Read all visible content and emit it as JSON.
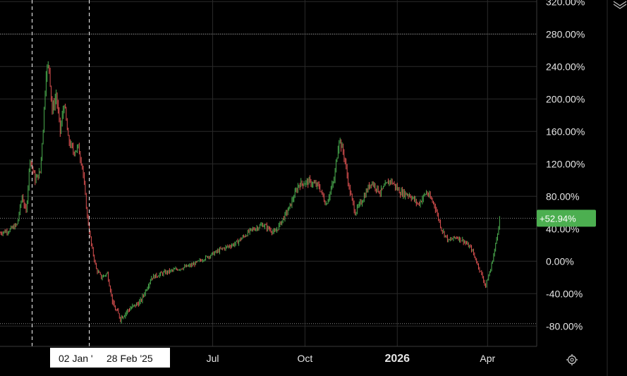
{
  "chart_data": {
    "type": "candlestick",
    "y_axis": {
      "unit": "%",
      "ticks": [
        "-80.00%",
        "-40.00%",
        "0.00%",
        "40.00%",
        "80.00%",
        "120.00%",
        "160.00%",
        "200.00%",
        "240.00%",
        "280.00%",
        "320.00%"
      ],
      "tick_values": [
        -80,
        -40,
        0,
        40,
        80,
        120,
        160,
        200,
        240,
        280,
        320
      ],
      "range": [
        -105,
        322
      ]
    },
    "x_axis": {
      "labels": [
        {
          "text": "Jul",
          "date": "2025-07-01",
          "bold": false
        },
        {
          "text": "Oct",
          "date": "2025-10-01",
          "bold": false
        },
        {
          "text": "2026",
          "date": "2026-01-01",
          "bold": true
        },
        {
          "text": "Apr",
          "date": "2026-04-01",
          "bold": false
        }
      ],
      "range": [
        "2024-12-01",
        "2026-05-20"
      ]
    },
    "crosshair_dates": [
      {
        "text": "02 Jan '",
        "date": "2025-01-02"
      },
      {
        "text": "28 Feb '25",
        "date": "2025-02-28"
      }
    ],
    "last_value": {
      "text": "+52.94%",
      "value": 52.94
    },
    "reference_levels": [
      280,
      -77
    ],
    "colors": {
      "up": "#4caf50",
      "down": "#e05252",
      "last_value_bg": "#4caf50",
      "grid": "#2a2a2a"
    },
    "grid": true,
    "series_anchors": [
      {
        "date": "2024-12-01",
        "value": 35
      },
      {
        "date": "2024-12-10",
        "value": 38
      },
      {
        "date": "2024-12-18",
        "value": 45
      },
      {
        "date": "2024-12-23",
        "value": 80
      },
      {
        "date": "2024-12-27",
        "value": 60
      },
      {
        "date": "2024-12-31",
        "value": 128
      },
      {
        "date": "2025-01-05",
        "value": 100
      },
      {
        "date": "2025-01-10",
        "value": 110
      },
      {
        "date": "2025-01-13",
        "value": 165
      },
      {
        "date": "2025-01-16",
        "value": 235
      },
      {
        "date": "2025-01-19",
        "value": 240
      },
      {
        "date": "2025-01-22",
        "value": 185
      },
      {
        "date": "2025-01-26",
        "value": 205
      },
      {
        "date": "2025-01-30",
        "value": 160
      },
      {
        "date": "2025-02-03",
        "value": 195
      },
      {
        "date": "2025-02-07",
        "value": 150
      },
      {
        "date": "2025-02-12",
        "value": 135
      },
      {
        "date": "2025-02-17",
        "value": 140
      },
      {
        "date": "2025-02-21",
        "value": 118
      },
      {
        "date": "2025-02-26",
        "value": 55
      },
      {
        "date": "2025-03-02",
        "value": 20
      },
      {
        "date": "2025-03-07",
        "value": -10
      },
      {
        "date": "2025-03-12",
        "value": -20
      },
      {
        "date": "2025-03-18",
        "value": -15
      },
      {
        "date": "2025-03-24",
        "value": -55
      },
      {
        "date": "2025-03-31",
        "value": -70
      },
      {
        "date": "2025-04-08",
        "value": -60
      },
      {
        "date": "2025-04-20",
        "value": -50
      },
      {
        "date": "2025-05-01",
        "value": -20
      },
      {
        "date": "2025-05-12",
        "value": -15
      },
      {
        "date": "2025-05-26",
        "value": -10
      },
      {
        "date": "2025-06-10",
        "value": -5
      },
      {
        "date": "2025-06-25",
        "value": 5
      },
      {
        "date": "2025-07-10",
        "value": 15
      },
      {
        "date": "2025-07-24",
        "value": 22
      },
      {
        "date": "2025-08-08",
        "value": 38
      },
      {
        "date": "2025-08-20",
        "value": 45
      },
      {
        "date": "2025-09-01",
        "value": 35
      },
      {
        "date": "2025-09-15",
        "value": 65
      },
      {
        "date": "2025-09-25",
        "value": 95
      },
      {
        "date": "2025-10-05",
        "value": 98
      },
      {
        "date": "2025-10-15",
        "value": 92
      },
      {
        "date": "2025-10-22",
        "value": 70
      },
      {
        "date": "2025-10-30",
        "value": 100
      },
      {
        "date": "2025-11-04",
        "value": 152
      },
      {
        "date": "2025-11-09",
        "value": 130
      },
      {
        "date": "2025-11-14",
        "value": 90
      },
      {
        "date": "2025-11-20",
        "value": 60
      },
      {
        "date": "2025-11-27",
        "value": 75
      },
      {
        "date": "2025-12-06",
        "value": 98
      },
      {
        "date": "2025-12-15",
        "value": 85
      },
      {
        "date": "2025-12-25",
        "value": 100
      },
      {
        "date": "2026-01-04",
        "value": 85
      },
      {
        "date": "2026-01-13",
        "value": 82
      },
      {
        "date": "2026-01-22",
        "value": 70
      },
      {
        "date": "2026-01-30",
        "value": 85
      },
      {
        "date": "2026-02-07",
        "value": 70
      },
      {
        "date": "2026-02-14",
        "value": 40
      },
      {
        "date": "2026-02-21",
        "value": 25
      },
      {
        "date": "2026-03-01",
        "value": 30
      },
      {
        "date": "2026-03-08",
        "value": 25
      },
      {
        "date": "2026-03-16",
        "value": 15
      },
      {
        "date": "2026-03-24",
        "value": -10
      },
      {
        "date": "2026-03-30",
        "value": -30
      },
      {
        "date": "2026-04-04",
        "value": -10
      },
      {
        "date": "2026-04-09",
        "value": 20
      },
      {
        "date": "2026-04-13",
        "value": 52.94
      }
    ]
  }
}
